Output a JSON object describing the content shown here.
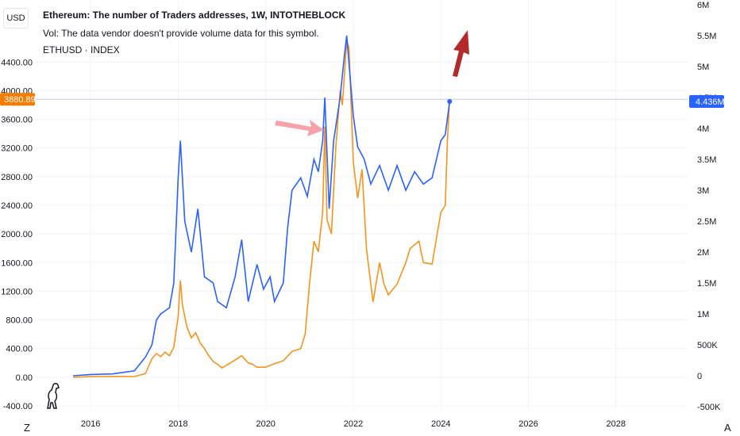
{
  "header": {
    "title": "Ethereum: The number of Traders addresses, 1W, INTOTHEBLOCK",
    "vol_note": "Vol: The data vendor doesn't provide volume data for this symbol.",
    "symbol": "ETHUSD · INDEX"
  },
  "currency_button": "USD",
  "corner_left": "Z",
  "corner_right": "A",
  "colors": {
    "price": "#f7931a",
    "traders": "#2962ff",
    "price_tag": "#f57c00",
    "traders_tag": "#2962ff",
    "arrow_pink": "#f7a1a8",
    "arrow_red": "#b22a2a",
    "grid": "#f0f3fa"
  },
  "chart_data": {
    "type": "line",
    "x_axis": {
      "ticks": [
        "2016",
        "2018",
        "2020",
        "2022",
        "2024",
        "2026",
        "2028"
      ],
      "range": [
        2014.8,
        2029.6
      ]
    },
    "left_axis": {
      "ticks": [
        "-400.00",
        "0.00",
        "400.00",
        "800.00",
        "1200.00",
        "1600.00",
        "2000.00",
        "2400.00",
        "2800.00",
        "3200.00",
        "3600.00",
        "4000.00",
        "4400.00"
      ],
      "range": [
        -400,
        5200
      ]
    },
    "right_axis": {
      "ticks": [
        "-500K",
        "0",
        "500K",
        "1M",
        "1.5M",
        "2M",
        "2.5M",
        "3M",
        "3.5M",
        "4M",
        "4.5M",
        "5M",
        "5.5M",
        "6M"
      ],
      "range": [
        -500000,
        6000000
      ]
    },
    "last_price_label": "3880.89",
    "last_traders_label": "4.436M",
    "series": [
      {
        "axis": "left",
        "x": [
          2015.6,
          2016.0,
          2016.5,
          2017.0,
          2017.25,
          2017.4,
          2017.5,
          2017.6,
          2017.7,
          2017.8,
          2017.9,
          2018.0,
          2018.05,
          2018.1,
          2018.2,
          2018.3,
          2018.4,
          2018.5,
          2018.6,
          2018.7,
          2018.8,
          2018.9,
          2019.0,
          2019.3,
          2019.45,
          2019.6,
          2019.7,
          2019.8,
          2020.0,
          2020.2,
          2020.4,
          2020.6,
          2020.8,
          2020.9,
          2021.0,
          2021.1,
          2021.2,
          2021.3,
          2021.35,
          2021.4,
          2021.5,
          2021.6,
          2021.7,
          2021.75,
          2021.85,
          2021.9,
          2022.0,
          2022.1,
          2022.2,
          2022.3,
          2022.45,
          2022.6,
          2022.7,
          2022.8,
          2023.0,
          2023.2,
          2023.3,
          2023.5,
          2023.6,
          2023.8,
          2024.0,
          2024.1,
          2024.15,
          2024.2
        ],
        "y": [
          0,
          8,
          11,
          10,
          50,
          260,
          330,
          290,
          350,
          300,
          420,
          850,
          1350,
          1000,
          700,
          550,
          620,
          480,
          400,
          300,
          220,
          180,
          130,
          240,
          300,
          200,
          180,
          140,
          140,
          190,
          230,
          360,
          400,
          600,
          1300,
          1900,
          1750,
          2300,
          3500,
          2200,
          2000,
          3200,
          4000,
          3800,
          4700,
          4600,
          3000,
          2500,
          2900,
          1800,
          1050,
          1600,
          1300,
          1150,
          1300,
          1600,
          1800,
          1900,
          1600,
          1580,
          2300,
          2400,
          3300,
          3880.89
        ]
      },
      {
        "axis": "right",
        "x": [
          2015.6,
          2016.0,
          2016.5,
          2017.0,
          2017.25,
          2017.4,
          2017.5,
          2017.6,
          2017.7,
          2017.8,
          2017.9,
          2018.0,
          2018.05,
          2018.15,
          2018.3,
          2018.45,
          2018.6,
          2018.8,
          2018.9,
          2019.1,
          2019.3,
          2019.45,
          2019.6,
          2019.8,
          2019.95,
          2020.1,
          2020.2,
          2020.4,
          2020.5,
          2020.6,
          2020.8,
          2020.95,
          2021.1,
          2021.2,
          2021.3,
          2021.35,
          2021.45,
          2021.55,
          2021.7,
          2021.8,
          2021.85,
          2022.0,
          2022.1,
          2022.25,
          2022.4,
          2022.6,
          2022.8,
          2023.0,
          2023.2,
          2023.4,
          2023.6,
          2023.8,
          2024.0,
          2024.1,
          2024.2
        ],
        "y": [
          0,
          20000,
          30000,
          80000,
          300000,
          500000,
          900000,
          1000000,
          1050000,
          1100000,
          1500000,
          3200000,
          3800000,
          2500000,
          2000000,
          2700000,
          1600000,
          1500000,
          1200000,
          1100000,
          1600000,
          2200000,
          1200000,
          1800000,
          1400000,
          1600000,
          1200000,
          1500000,
          2400000,
          3000000,
          3200000,
          2900000,
          3500000,
          3300000,
          3800000,
          4500000,
          2700000,
          3800000,
          4500000,
          5200000,
          5500000,
          4200000,
          3700000,
          3500000,
          3100000,
          3400000,
          3000000,
          3400000,
          3000000,
          3300000,
          3100000,
          3200000,
          3800000,
          3900000,
          4436000
        ]
      }
    ]
  }
}
